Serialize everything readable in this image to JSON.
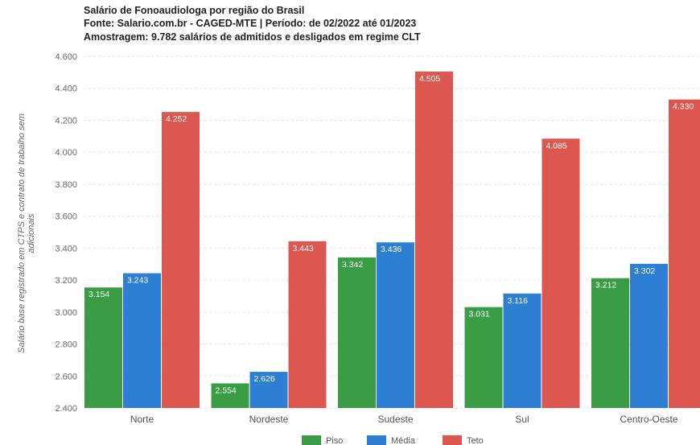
{
  "chart_data": {
    "type": "bar",
    "title_lines": [
      "Salário de Fonoaudiologa por região do Brasil",
      "Fonte: Salario.com.br - CAGED-MTE | Período: de 02/2022 até 01/2023",
      "Amostragem: 9.782 salários de admitidos e desligados em regime CLT"
    ],
    "ylabel_lines": [
      "Salário base registrado em CTPS e contrato de trabalho sem",
      "adicionais"
    ],
    "xlabel": "",
    "ylim": [
      2400,
      4600
    ],
    "yticks": [
      2400,
      2600,
      2800,
      3000,
      3200,
      3400,
      3600,
      3800,
      4000,
      4200,
      4400,
      4600
    ],
    "ytick_labels": [
      "2.400",
      "2.600",
      "2.800",
      "3.000",
      "3.200",
      "3.400",
      "3.600",
      "3.800",
      "4.000",
      "4.200",
      "4.400",
      "4.600"
    ],
    "grid": true,
    "legend_position": "bottom-center",
    "categories": [
      "Norte",
      "Nordeste",
      "Sudeste",
      "Sul",
      "Centro-Oeste"
    ],
    "series": [
      {
        "name": "Piso",
        "color": "#3a9c44",
        "values": [
          3154,
          2554,
          3342,
          3031,
          3212
        ],
        "value_labels": [
          "3.154",
          "2.554",
          "3.342",
          "3.031",
          "3.212"
        ]
      },
      {
        "name": "Média",
        "color": "#2d7fd3",
        "values": [
          3243,
          2626,
          3436,
          3116,
          3302
        ],
        "value_labels": [
          "3.243",
          "2.626",
          "3.436",
          "3.116",
          "3.302"
        ]
      },
      {
        "name": "Teto",
        "color": "#dc5750",
        "values": [
          4252,
          3443,
          4505,
          4085,
          4330
        ],
        "value_labels": [
          "4.252",
          "3.443",
          "4.505",
          "4.085",
          "4.330"
        ]
      }
    ]
  }
}
